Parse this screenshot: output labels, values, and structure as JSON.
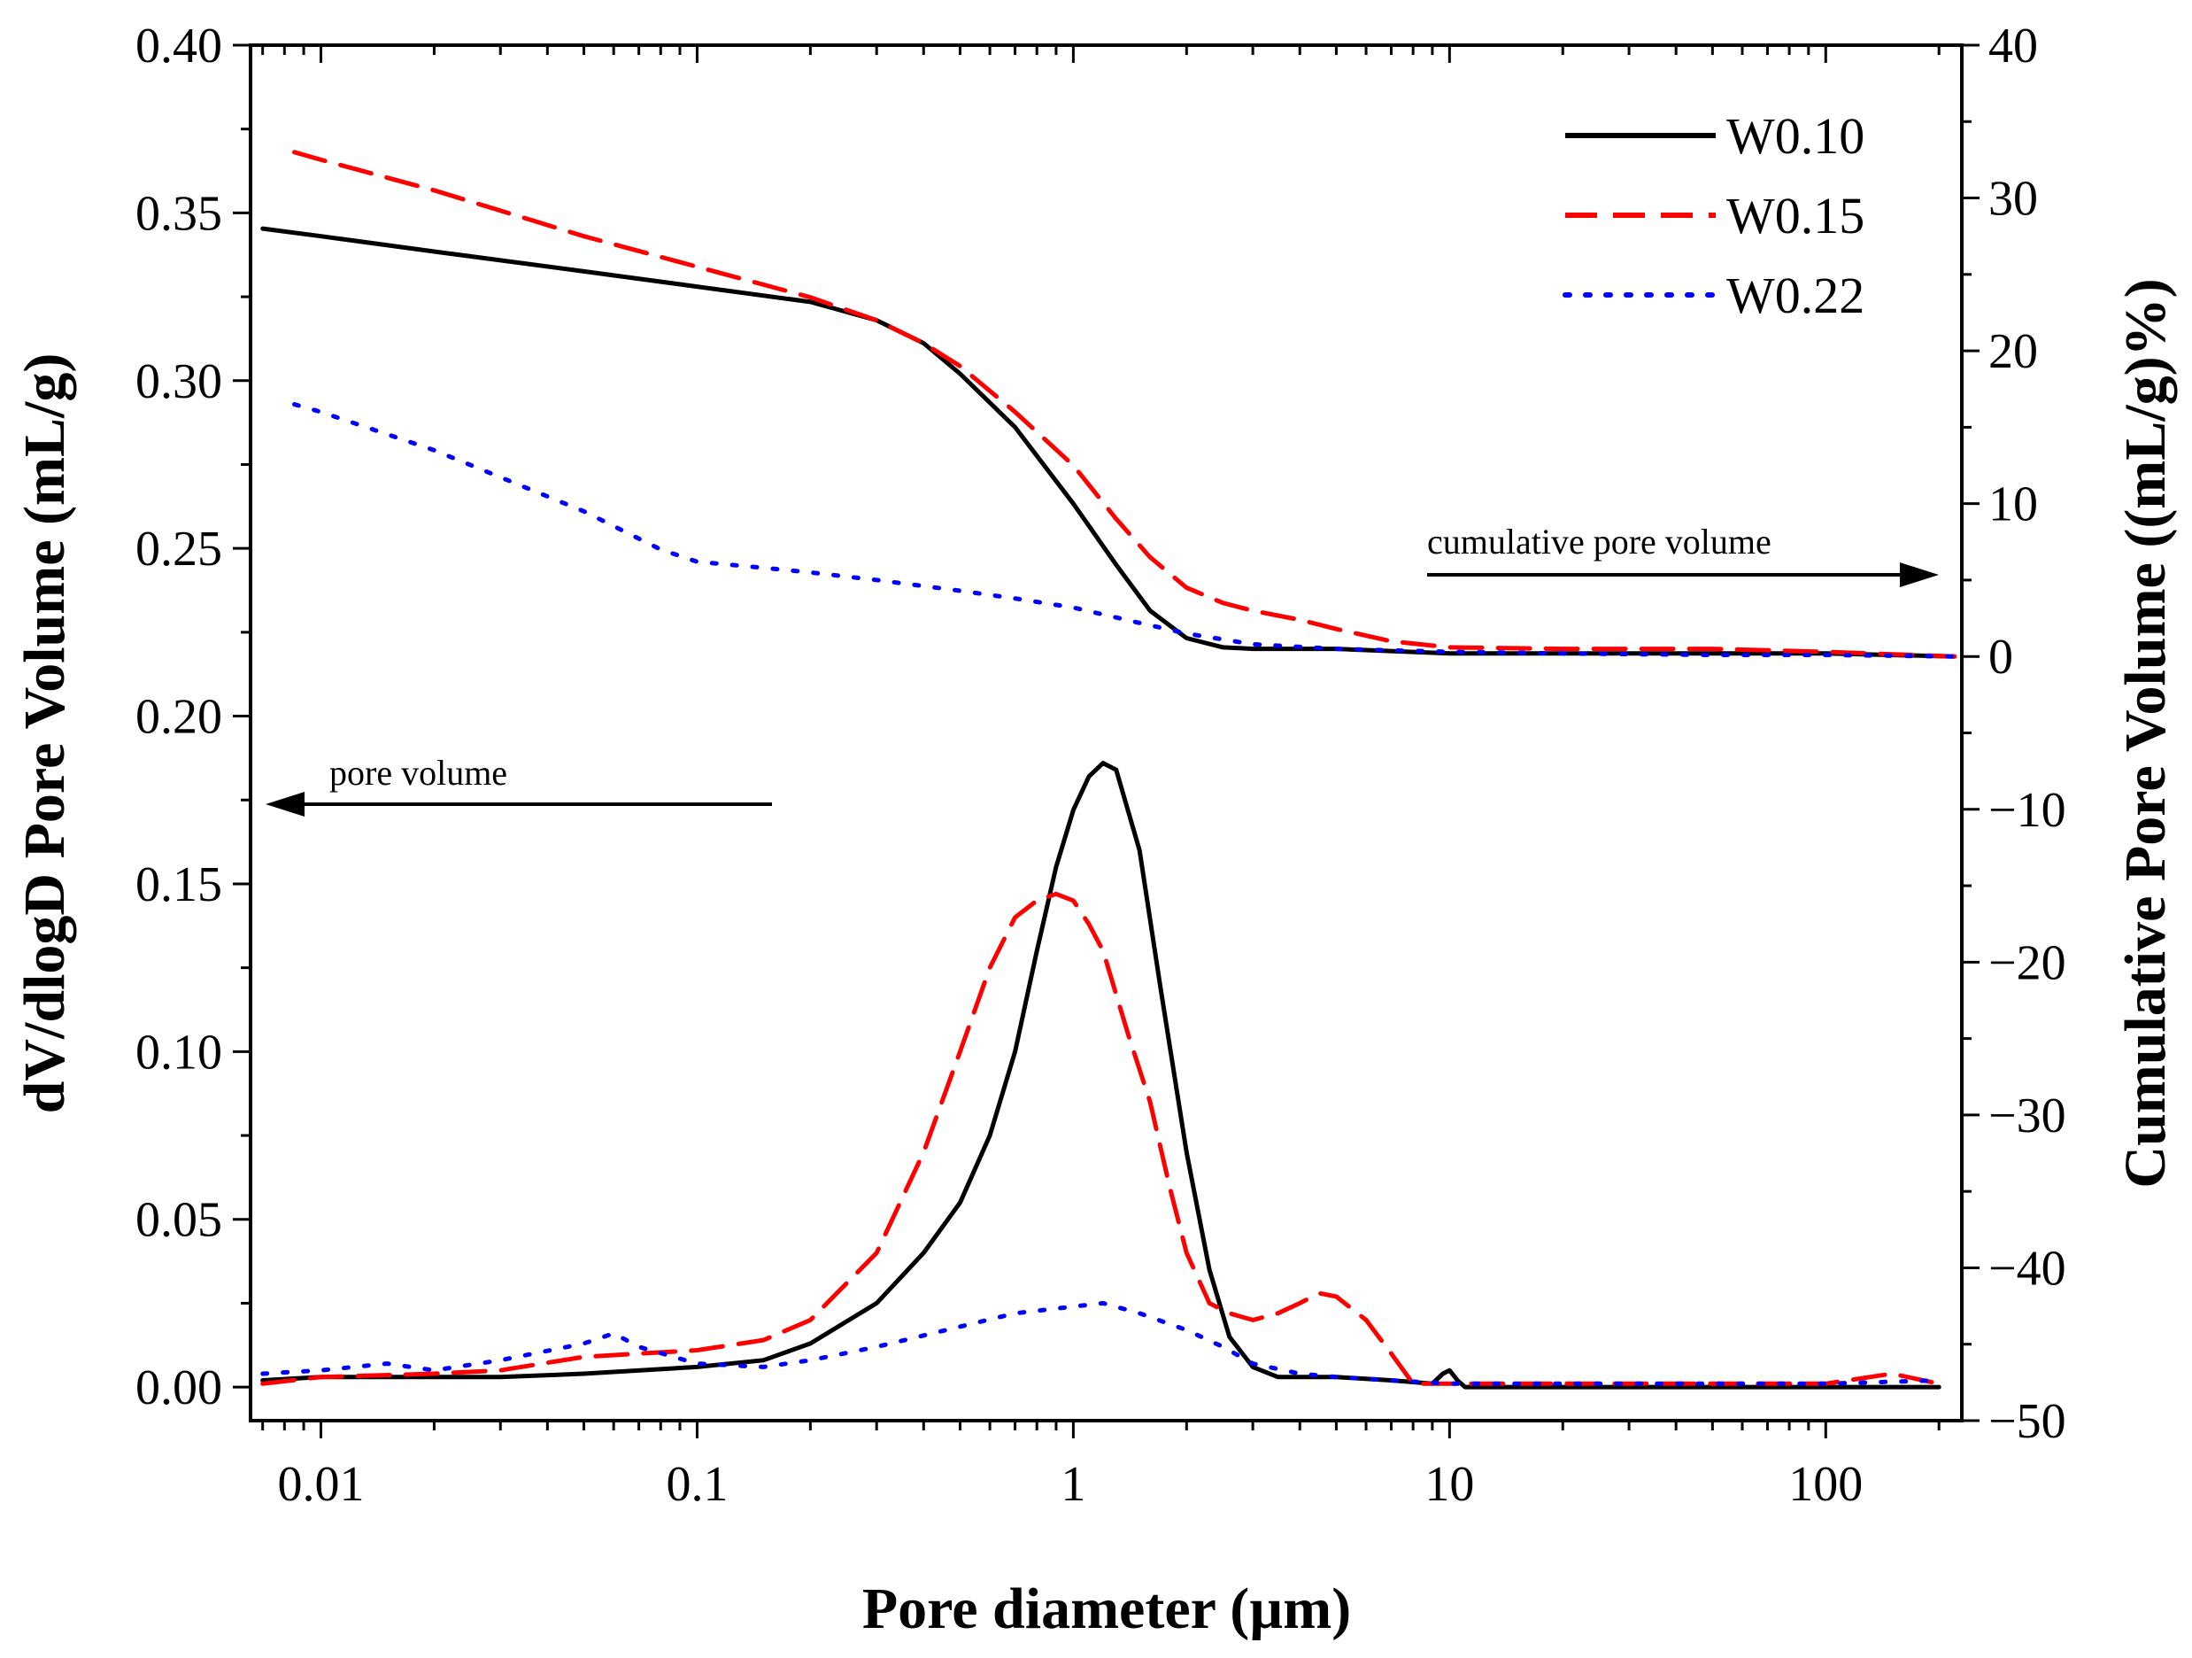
{
  "chart_data": {
    "type": "line",
    "title": "",
    "xlabel": "Pore diameter (µm)",
    "ylabel_left": "dV/dlogD Pore Volume (mL/g)",
    "ylabel_right": "Cumulative Pore Volume ((mL/g)%)",
    "x_scale": "log",
    "xlim": [
      0.0065,
      230
    ],
    "ylim_left": [
      -0.01,
      0.4
    ],
    "ylim_right": [
      -50,
      40
    ],
    "x_ticks": [
      {
        "value": 0.01,
        "label": "0.01"
      },
      {
        "value": 0.1,
        "label": "0.1"
      },
      {
        "value": 1,
        "label": "1"
      },
      {
        "value": 10,
        "label": "10"
      },
      {
        "value": 100,
        "label": "100"
      }
    ],
    "y_left_ticks": [
      {
        "value": 0.0,
        "label": "0.00"
      },
      {
        "value": 0.05,
        "label": "0.05"
      },
      {
        "value": 0.1,
        "label": "0.10"
      },
      {
        "value": 0.15,
        "label": "0.15"
      },
      {
        "value": 0.2,
        "label": "0.20"
      },
      {
        "value": 0.25,
        "label": "0.25"
      },
      {
        "value": 0.3,
        "label": "0.30"
      },
      {
        "value": 0.35,
        "label": "0.35"
      },
      {
        "value": 0.4,
        "label": "0.40"
      }
    ],
    "y_right_ticks": [
      {
        "value": -50,
        "label": "−50"
      },
      {
        "value": -40,
        "label": "−40"
      },
      {
        "value": -30,
        "label": "−30"
      },
      {
        "value": -20,
        "label": "−20"
      },
      {
        "value": -10,
        "label": "−10"
      },
      {
        "value": 0,
        "label": "0"
      },
      {
        "value": 10,
        "label": "10"
      },
      {
        "value": 20,
        "label": "20"
      },
      {
        "value": 30,
        "label": "30"
      },
      {
        "value": 40,
        "label": "40"
      }
    ],
    "legend_position": "top-right",
    "annotations": [
      {
        "text": "cumulative pore volume",
        "arrow": "right",
        "axis": "right"
      },
      {
        "text": "pore volume",
        "arrow": "left",
        "axis": "left"
      }
    ],
    "series": [
      {
        "name": "W0.10",
        "color": "#000000",
        "dash": "solid",
        "cumulative": {
          "axis": "right",
          "x": [
            0.007,
            0.01,
            0.02,
            0.05,
            0.1,
            0.2,
            0.3,
            0.4,
            0.5,
            0.7,
            1.0,
            1.3,
            1.6,
            2.0,
            2.5,
            3.0,
            5,
            10,
            20,
            50,
            100,
            220
          ],
          "y": [
            28.0,
            27.5,
            26.5,
            25.2,
            24.2,
            23.2,
            22.0,
            20.5,
            18.5,
            15.0,
            10.0,
            6.0,
            3.0,
            1.2,
            0.6,
            0.5,
            0.5,
            0.2,
            0.2,
            0.2,
            0.2,
            0.0
          ]
        },
        "distribution": {
          "axis": "left",
          "x": [
            0.007,
            0.01,
            0.02,
            0.03,
            0.05,
            0.1,
            0.15,
            0.2,
            0.3,
            0.4,
            0.5,
            0.6,
            0.7,
            0.8,
            0.9,
            1.0,
            1.1,
            1.2,
            1.3,
            1.5,
            1.7,
            2.0,
            2.3,
            2.6,
            3.0,
            3.5,
            4,
            5,
            7,
            9,
            9.6,
            10.0,
            10.5,
            11,
            15,
            20,
            50,
            100,
            200
          ],
          "y": [
            0.002,
            0.003,
            0.003,
            0.003,
            0.004,
            0.006,
            0.008,
            0.013,
            0.025,
            0.04,
            0.055,
            0.075,
            0.1,
            0.13,
            0.155,
            0.172,
            0.182,
            0.186,
            0.184,
            0.16,
            0.12,
            0.07,
            0.035,
            0.015,
            0.006,
            0.003,
            0.003,
            0.003,
            0.002,
            0.001,
            0.004,
            0.005,
            0.002,
            0.0,
            0.0,
            0.0,
            0.0,
            0.0,
            0.0
          ]
        }
      },
      {
        "name": "W0.15",
        "color": "#ff0000",
        "dash": "dashed",
        "cumulative": {
          "axis": "right",
          "x": [
            0.0085,
            0.01,
            0.02,
            0.05,
            0.1,
            0.2,
            0.3,
            0.4,
            0.5,
            0.7,
            1.0,
            1.3,
            1.6,
            2.0,
            2.5,
            3.0,
            4,
            5,
            7,
            10,
            20,
            50,
            100,
            220
          ],
          "y": [
            33.0,
            32.5,
            30.5,
            27.5,
            25.5,
            23.5,
            22.0,
            20.5,
            19.0,
            16.0,
            12.5,
            9.0,
            6.5,
            4.5,
            3.5,
            3.0,
            2.4,
            1.8,
            1.0,
            0.6,
            0.5,
            0.5,
            0.3,
            0.0
          ]
        },
        "distribution": {
          "axis": "left",
          "x": [
            0.007,
            0.01,
            0.02,
            0.03,
            0.05,
            0.1,
            0.15,
            0.2,
            0.3,
            0.4,
            0.5,
            0.6,
            0.7,
            0.8,
            0.9,
            1.0,
            1.1,
            1.2,
            1.4,
            1.6,
            1.8,
            2.0,
            2.3,
            2.6,
            3.0,
            3.5,
            4.0,
            4.5,
            5.0,
            6.0,
            7.0,
            8.0,
            10,
            20,
            50,
            100,
            150,
            200
          ],
          "y": [
            0.001,
            0.003,
            0.004,
            0.005,
            0.009,
            0.011,
            0.014,
            0.02,
            0.04,
            0.07,
            0.1,
            0.125,
            0.14,
            0.145,
            0.147,
            0.145,
            0.138,
            0.13,
            0.105,
            0.085,
            0.06,
            0.04,
            0.025,
            0.022,
            0.02,
            0.022,
            0.025,
            0.028,
            0.027,
            0.02,
            0.01,
            0.001,
            0.001,
            0.001,
            0.001,
            0.001,
            0.004,
            0.001
          ]
        }
      },
      {
        "name": "W0.22",
        "color": "#0000ff",
        "dash": "dotted",
        "cumulative": {
          "axis": "right",
          "x": [
            0.0085,
            0.01,
            0.02,
            0.05,
            0.08,
            0.1,
            0.15,
            0.2,
            0.3,
            0.5,
            0.7,
            1.0,
            1.5,
            2.0,
            3,
            5,
            10,
            20,
            50,
            100,
            220
          ],
          "y": [
            16.5,
            16.0,
            13.5,
            9.5,
            7.0,
            6.2,
            5.8,
            5.5,
            5.0,
            4.3,
            3.8,
            3.2,
            2.2,
            1.5,
            0.8,
            0.5,
            0.3,
            0.2,
            0.1,
            0.1,
            0.0
          ]
        },
        "distribution": {
          "axis": "left",
          "x": [
            0.007,
            0.01,
            0.015,
            0.02,
            0.03,
            0.05,
            0.06,
            0.07,
            0.1,
            0.15,
            0.2,
            0.3,
            0.5,
            0.7,
            1.0,
            1.2,
            1.5,
            2.0,
            2.5,
            3.0,
            4,
            5,
            7,
            10,
            20,
            50,
            100,
            200
          ],
          "y": [
            0.004,
            0.005,
            0.007,
            0.005,
            0.008,
            0.013,
            0.016,
            0.012,
            0.007,
            0.006,
            0.008,
            0.012,
            0.018,
            0.022,
            0.024,
            0.025,
            0.022,
            0.017,
            0.012,
            0.007,
            0.004,
            0.003,
            0.002,
            0.001,
            0.001,
            0.001,
            0.001,
            0.002
          ]
        }
      }
    ]
  }
}
